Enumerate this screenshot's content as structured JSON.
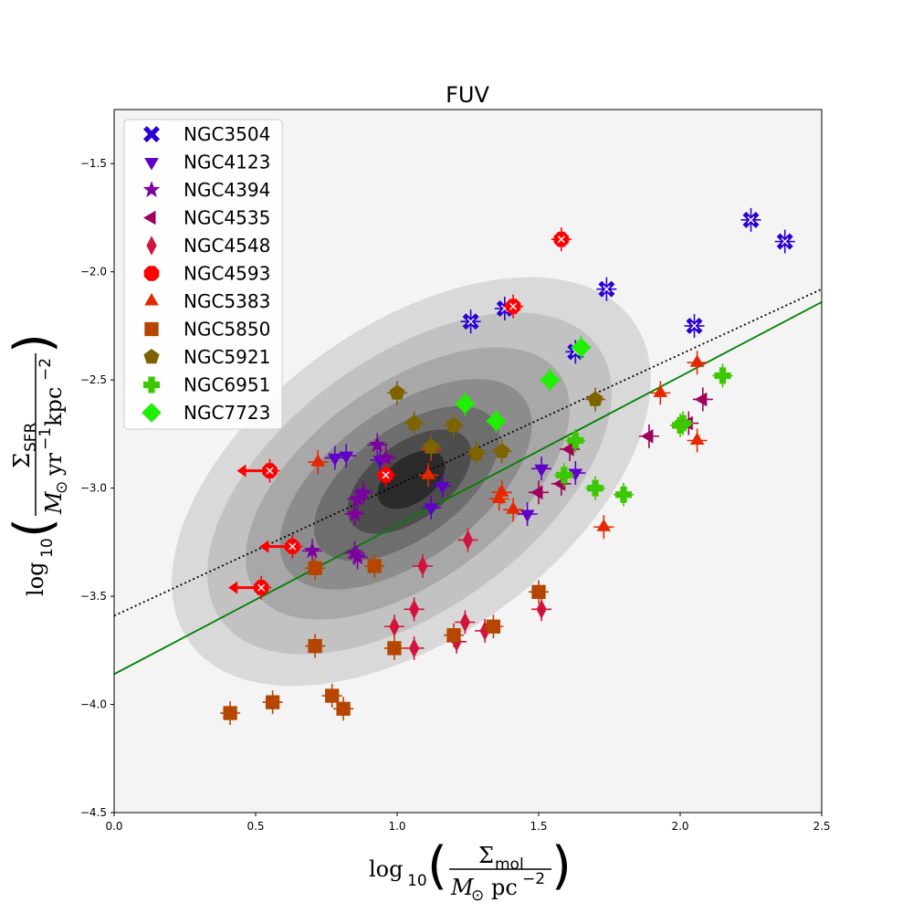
{
  "chart_data": {
    "type": "scatter",
    "title": "FUV",
    "xlim": [
      0.0,
      2.5
    ],
    "ylim": [
      -4.5,
      -1.25
    ],
    "x_ticks": [
      0.0,
      0.5,
      1.0,
      1.5,
      2.0,
      2.5
    ],
    "x_tick_labels": [
      "0.0",
      "0.5",
      "1.0",
      "1.5",
      "2.0",
      "2.5"
    ],
    "y_ticks": [
      -4.5,
      -4.0,
      -3.5,
      -3.0,
      -2.5,
      -2.0,
      -1.5
    ],
    "y_tick_labels": [
      "−4.5",
      "−4.0",
      "−3.5",
      "−3.0",
      "−2.5",
      "−2.0",
      "−1.5"
    ],
    "xlabel": {
      "prefix": "log",
      "sub": "10",
      "numerator": "Σ",
      "numerator_sub": "mol",
      "denominator_main": "M",
      "denominator_sub": "⊙",
      "denominator_unit": "pc",
      "denominator_exp": "−2"
    },
    "ylabel": {
      "prefix": "log",
      "sub": "10",
      "numerator": "Σ",
      "numerator_sub": "SFR",
      "denominator_main": "M",
      "denominator_sub": "⊙",
      "denominator_unit1": "yr",
      "denominator_exp1": "−1",
      "denominator_unit2": "kpc",
      "denominator_exp2": "−2"
    },
    "legend_position": "top-left",
    "contours": {
      "description_levels": 7,
      "colors": [
        "#d9d9d9",
        "#c2c2c2",
        "#a8a8a8",
        "#8c8c8c",
        "#6e6e6e",
        "#4d4d4d",
        "#2b2b2b"
      ]
    },
    "lines": [
      {
        "style": "dotted",
        "color": "#000000",
        "x": [
          0.0,
          2.5
        ],
        "y": [
          -3.59,
          -2.08
        ]
      },
      {
        "style": "solid",
        "color": "#008000",
        "x": [
          0.0,
          2.5
        ],
        "y": [
          -3.86,
          -2.14
        ]
      }
    ],
    "series": [
      {
        "name": "NGC3504",
        "marker": "x",
        "color": "#2a00d5",
        "points": [
          [
            1.26,
            -2.23
          ],
          [
            1.38,
            -2.17
          ],
          [
            1.63,
            -2.37
          ],
          [
            1.74,
            -2.08
          ],
          [
            2.05,
            -2.25
          ],
          [
            2.25,
            -1.76
          ],
          [
            2.37,
            -1.86
          ]
        ]
      },
      {
        "name": "NGC4123",
        "marker": "triangle-down",
        "color": "#5e00c8",
        "points": [
          [
            0.78,
            -2.86
          ],
          [
            0.82,
            -2.85
          ],
          [
            0.94,
            -2.87
          ],
          [
            1.16,
            -2.99
          ],
          [
            1.12,
            -3.09
          ],
          [
            1.51,
            -2.91
          ],
          [
            1.63,
            -2.93
          ],
          [
            1.46,
            -3.12
          ]
        ]
      },
      {
        "name": "NGC4394",
        "marker": "star",
        "color": "#7d00a0",
        "points": [
          [
            0.86,
            -3.05
          ],
          [
            0.88,
            -3.02
          ],
          [
            0.85,
            -3.12
          ],
          [
            0.7,
            -3.29
          ],
          [
            0.86,
            -3.32
          ],
          [
            0.85,
            -3.3
          ],
          [
            0.93,
            -2.8
          ],
          [
            0.96,
            -2.86
          ]
        ]
      },
      {
        "name": "NGC4535",
        "marker": "triangle-left",
        "color": "#a0005a",
        "points": [
          [
            1.5,
            -3.02
          ],
          [
            1.58,
            -2.98
          ],
          [
            1.61,
            -2.82
          ],
          [
            1.89,
            -2.76
          ],
          [
            2.03,
            -2.7
          ],
          [
            2.08,
            -2.59
          ]
        ]
      },
      {
        "name": "NGC4548",
        "marker": "thin-diamond",
        "color": "#d2143c",
        "points": [
          [
            0.99,
            -3.64
          ],
          [
            1.06,
            -3.56
          ],
          [
            1.06,
            -3.74
          ],
          [
            1.09,
            -3.36
          ],
          [
            1.21,
            -3.71
          ],
          [
            1.24,
            -3.62
          ],
          [
            1.25,
            -3.24
          ],
          [
            1.31,
            -3.66
          ],
          [
            1.51,
            -3.56
          ]
        ]
      },
      {
        "name": "NGC4593",
        "marker": "octagon",
        "color": "#ff0000",
        "points": [
          [
            0.55,
            -2.92
          ],
          [
            0.63,
            -3.27
          ],
          [
            0.52,
            -3.46
          ],
          [
            0.96,
            -2.94
          ],
          [
            1.41,
            -2.16
          ],
          [
            1.58,
            -1.85
          ]
        ]
      },
      {
        "name": "NGC5383",
        "marker": "triangle-up",
        "color": "#e62800",
        "points": [
          [
            0.72,
            -2.88
          ],
          [
            1.11,
            -2.94
          ],
          [
            1.12,
            -2.82
          ],
          [
            1.36,
            -3.05
          ],
          [
            1.37,
            -3.02
          ],
          [
            1.41,
            -3.1
          ],
          [
            1.73,
            -3.18
          ],
          [
            1.93,
            -2.56
          ],
          [
            2.06,
            -2.42
          ],
          [
            2.06,
            -2.78
          ]
        ]
      },
      {
        "name": "NGC5850",
        "marker": "square",
        "color": "#b44600",
        "points": [
          [
            0.41,
            -4.04
          ],
          [
            0.56,
            -3.99
          ],
          [
            0.71,
            -3.37
          ],
          [
            0.71,
            -3.73
          ],
          [
            0.77,
            -3.96
          ],
          [
            0.81,
            -4.02
          ],
          [
            0.92,
            -3.36
          ],
          [
            0.99,
            -3.74
          ],
          [
            1.2,
            -3.68
          ],
          [
            1.34,
            -3.64
          ],
          [
            1.5,
            -3.48
          ]
        ]
      },
      {
        "name": "NGC5921",
        "marker": "pentagon",
        "color": "#7d6400",
        "points": [
          [
            1.0,
            -2.56
          ],
          [
            1.06,
            -2.7
          ],
          [
            1.12,
            -2.81
          ],
          [
            1.2,
            -2.71
          ],
          [
            1.28,
            -2.84
          ],
          [
            1.37,
            -2.83
          ],
          [
            1.7,
            -2.59
          ]
        ]
      },
      {
        "name": "NGC6951",
        "marker": "plus",
        "color": "#3cc800",
        "points": [
          [
            1.59,
            -2.94
          ],
          [
            1.63,
            -2.78
          ],
          [
            1.7,
            -3.0
          ],
          [
            1.8,
            -3.03
          ],
          [
            2.0,
            -2.71
          ],
          [
            2.01,
            -2.7
          ],
          [
            2.15,
            -2.48
          ]
        ]
      },
      {
        "name": "NGC7723",
        "marker": "diamond",
        "color": "#1ef000",
        "points": [
          [
            1.24,
            -2.61
          ],
          [
            1.35,
            -2.69
          ],
          [
            1.54,
            -2.5
          ],
          [
            1.65,
            -2.35
          ]
        ]
      }
    ]
  }
}
